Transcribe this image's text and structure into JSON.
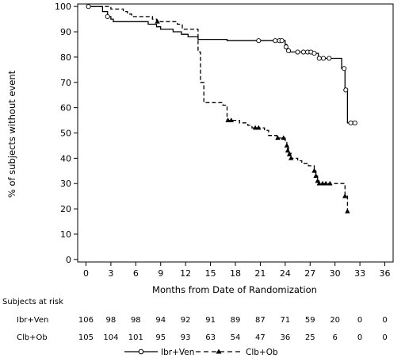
{
  "chart_data": {
    "type": "line",
    "title": "",
    "xlabel": "Months from Date of Randomization",
    "ylabel": "% of subjects without event",
    "xlim": [
      -1,
      37
    ],
    "ylim": [
      -1,
      101
    ],
    "x_ticks": [
      0,
      3,
      6,
      9,
      12,
      15,
      18,
      21,
      24,
      27,
      30,
      33,
      36
    ],
    "y_ticks": [
      0,
      10,
      20,
      30,
      40,
      50,
      60,
      70,
      80,
      90,
      100
    ],
    "grid": false,
    "legend_position": "bottom-center",
    "series": [
      {
        "name": "Ibr+Ven",
        "line_style": "solid",
        "censor_marker": "open-circle",
        "color": "#000000",
        "steps": [
          [
            0,
            100
          ],
          [
            2,
            98
          ],
          [
            2.6,
            96
          ],
          [
            3,
            95
          ],
          [
            3.3,
            94
          ],
          [
            7.5,
            93
          ],
          [
            8.5,
            92
          ],
          [
            9,
            91
          ],
          [
            10.5,
            90
          ],
          [
            11.5,
            89
          ],
          [
            12.3,
            88
          ],
          [
            13.5,
            87
          ],
          [
            17,
            86.5
          ],
          [
            24,
            85
          ],
          [
            24.2,
            83
          ],
          [
            24.5,
            82
          ],
          [
            27.3,
            81.5
          ],
          [
            28,
            79.5
          ],
          [
            30.8,
            75.5
          ],
          [
            31.2,
            67
          ],
          [
            31.5,
            54
          ],
          [
            32.5,
            54
          ]
        ],
        "censored": [
          [
            0.3,
            100
          ],
          [
            2.6,
            96
          ],
          [
            20.8,
            86.5
          ],
          [
            22.8,
            86.5
          ],
          [
            23.3,
            86.5
          ],
          [
            23.6,
            86.5
          ],
          [
            24.1,
            84
          ],
          [
            24.4,
            82.5
          ],
          [
            25.5,
            82
          ],
          [
            26.2,
            82
          ],
          [
            26.7,
            82
          ],
          [
            27.1,
            82
          ],
          [
            27.5,
            81.5
          ],
          [
            28.1,
            79.5
          ],
          [
            28.6,
            79.5
          ],
          [
            29.3,
            79.5
          ],
          [
            31.1,
            75.5
          ],
          [
            31.3,
            67
          ],
          [
            31.9,
            54
          ],
          [
            32.4,
            54
          ]
        ]
      },
      {
        "name": "Clb+Ob",
        "line_style": "dashed",
        "censor_marker": "filled-triangle",
        "color": "#000000",
        "steps": [
          [
            0,
            100
          ],
          [
            3,
            99
          ],
          [
            4.5,
            98
          ],
          [
            5,
            97
          ],
          [
            5.5,
            96
          ],
          [
            8,
            95
          ],
          [
            8.5,
            94
          ],
          [
            11,
            93
          ],
          [
            11.6,
            91
          ],
          [
            13,
            91
          ],
          [
            13.5,
            82
          ],
          [
            13.8,
            70
          ],
          [
            14.2,
            62
          ],
          [
            16.5,
            61
          ],
          [
            17,
            55
          ],
          [
            18.5,
            54
          ],
          [
            19.5,
            53
          ],
          [
            20,
            52
          ],
          [
            21.5,
            51
          ],
          [
            22,
            49
          ],
          [
            23,
            48
          ],
          [
            24,
            47
          ],
          [
            24.2,
            44
          ],
          [
            24.4,
            42
          ],
          [
            24.7,
            40
          ],
          [
            25.5,
            39
          ],
          [
            26,
            38
          ],
          [
            26.8,
            37
          ],
          [
            27.5,
            35
          ],
          [
            27.7,
            33
          ],
          [
            27.9,
            31
          ],
          [
            28.1,
            30
          ],
          [
            31.2,
            25
          ],
          [
            31.5,
            19
          ]
        ],
        "censored": [
          [
            8.6,
            94
          ],
          [
            17.1,
            55
          ],
          [
            17.5,
            55
          ],
          [
            20.4,
            52
          ],
          [
            20.8,
            52
          ],
          [
            23.1,
            48
          ],
          [
            23.8,
            48
          ],
          [
            24.2,
            45
          ],
          [
            24.3,
            43
          ],
          [
            24.5,
            41.5
          ],
          [
            24.7,
            40
          ],
          [
            27.5,
            35
          ],
          [
            27.7,
            33
          ],
          [
            27.9,
            31
          ],
          [
            28.1,
            30
          ],
          [
            28.5,
            30
          ],
          [
            28.9,
            30
          ],
          [
            29.4,
            30
          ],
          [
            31.2,
            25
          ],
          [
            31.5,
            19
          ]
        ]
      }
    ]
  },
  "risk_table": {
    "title": "Subjects at risk",
    "months": [
      0,
      3,
      6,
      9,
      12,
      15,
      18,
      21,
      24,
      27,
      30,
      33,
      36
    ],
    "rows": [
      {
        "label": "Ibr+Ven",
        "values": [
          "106",
          "98",
          "98",
          "94",
          "92",
          "91",
          "89",
          "87",
          "71",
          "59",
          "20",
          "0",
          "0"
        ]
      },
      {
        "label": "Clb+Ob",
        "values": [
          "105",
          "104",
          "101",
          "95",
          "93",
          "63",
          "54",
          "47",
          "36",
          "25",
          "6",
          "0",
          "0"
        ]
      }
    ]
  }
}
